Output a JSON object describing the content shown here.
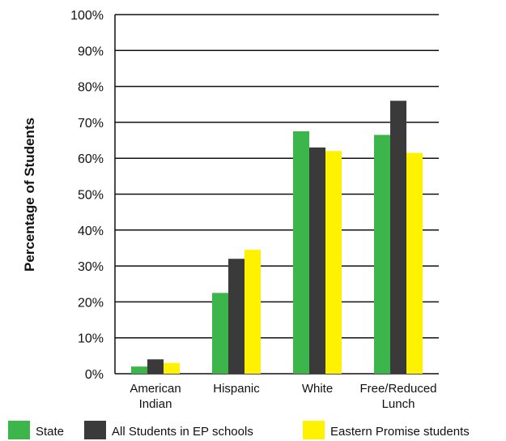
{
  "chart_data": {
    "type": "bar",
    "ylabel": "Percentage of Students",
    "xlabel": "",
    "ylim": [
      0,
      100
    ],
    "yticks": [
      "0%",
      "10%",
      "20%",
      "30%",
      "40%",
      "50%",
      "60%",
      "70%",
      "80%",
      "90%",
      "100%"
    ],
    "categories": [
      [
        "American",
        "Indian"
      ],
      [
        "Hispanic"
      ],
      [
        "White"
      ],
      [
        "Free/Reduced",
        "Lunch"
      ]
    ],
    "series": [
      {
        "name": "State",
        "color": "#3cb64a",
        "values": [
          2,
          22.5,
          67.5,
          66.5
        ]
      },
      {
        "name": "All Students in EP schools",
        "color": "#3a3a3a",
        "values": [
          4,
          32,
          63,
          76
        ]
      },
      {
        "name": "Eastern Promise students",
        "color": "#fff200",
        "values": [
          3,
          34.5,
          62,
          61.5
        ]
      }
    ],
    "grid": true,
    "legend": "bottom"
  }
}
